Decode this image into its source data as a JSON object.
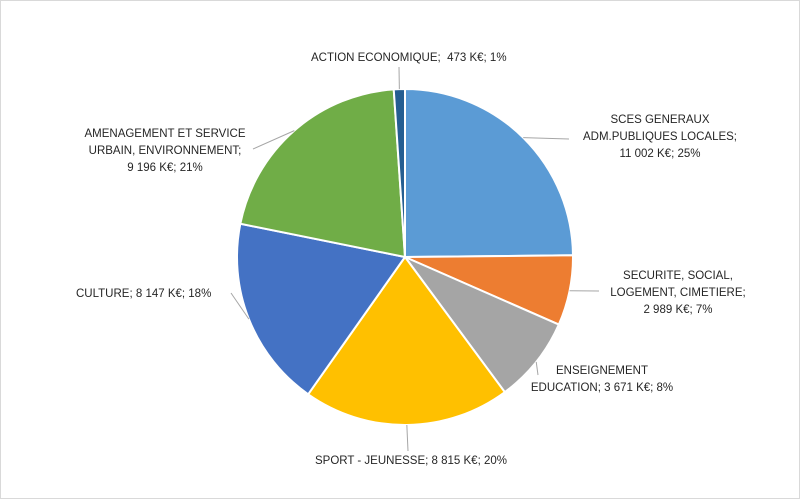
{
  "chart_data": {
    "type": "pie",
    "title": "",
    "unit": "K€",
    "slices": [
      {
        "category": "SCES GENERAUX ADM.PUBLIQUES LOCALES",
        "value": 11002,
        "percent": 25,
        "color": "#5b9bd5",
        "label": "SCES GENERAUX\nADM.PUBLIQUES LOCALES;\n11 002 K€; 25%"
      },
      {
        "category": "SECURITE, SOCIAL, LOGEMENT, CIMETIERE",
        "value": 2989,
        "percent": 7,
        "color": "#ed7d31",
        "label": "SECURITE, SOCIAL,\nLOGEMENT, CIMETIERE;\n2 989 K€; 7%"
      },
      {
        "category": "ENSEIGNEMENT EDUCATION",
        "value": 3671,
        "percent": 8,
        "color": "#a5a5a5",
        "label": "ENSEIGNEMENT\nEDUCATION; 3 671 K€; 8%"
      },
      {
        "category": "SPORT - JEUNESSE",
        "value": 8815,
        "percent": 20,
        "color": "#ffc000",
        "label": "SPORT - JEUNESSE; 8 815 K€; 20%"
      },
      {
        "category": "CULTURE",
        "value": 8147,
        "percent": 18,
        "color": "#4472c4",
        "label": "CULTURE; 8 147 K€; 18%"
      },
      {
        "category": "AMENAGEMENT ET SERVICE URBAIN, ENVIRONNEMENT",
        "value": 9196,
        "percent": 21,
        "color": "#70ad47",
        "label": "AMENAGEMENT ET SERVICE\nURBAIN, ENVIRONNEMENT;\n9 196 K€; 21%"
      },
      {
        "category": "ACTION ECONOMIQUE",
        "value": 473,
        "percent": 1,
        "color": "#255e91",
        "label": "ACTION ECONOMIQUE;  473 K€; 1%"
      }
    ],
    "legend": "none",
    "start_angle_deg": 0,
    "direction": "clockwise"
  }
}
